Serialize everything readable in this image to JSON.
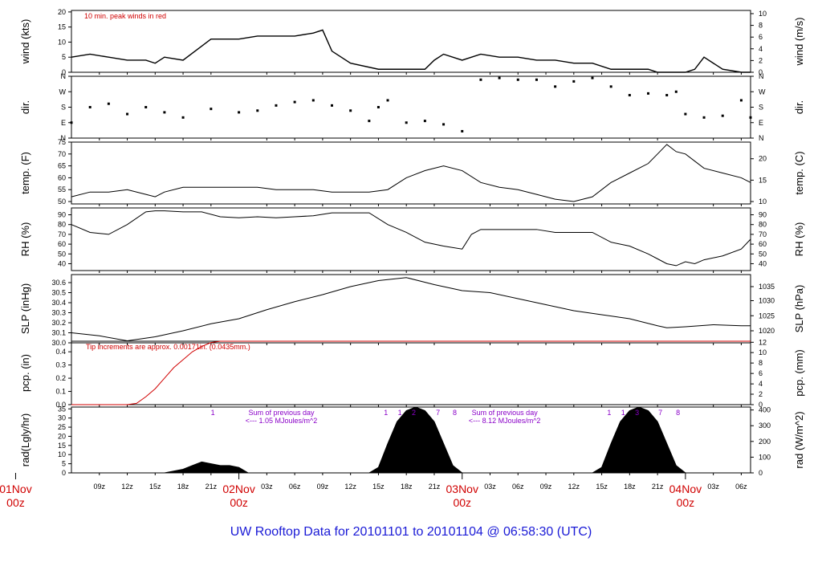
{
  "title": "UW Rooftop Data for 20101101  to  20101104 @ 06:58:30  (UTC)",
  "colors": {
    "title": "#1a1ad6",
    "note_red": "#d00000",
    "note_purple": "#8a00c8",
    "line": "#000000",
    "pcp_line": "#d00000"
  },
  "chart_data": {
    "type": "line",
    "x_unit": "hours from 2010-11-01 06:00z",
    "x_range": [
      0,
      73
    ],
    "x_major_labels": [
      {
        "hour": -6,
        "day": "01Nov",
        "hh": "00z"
      },
      {
        "hour": 18,
        "day": "02Nov",
        "hh": "00z"
      },
      {
        "hour": 42,
        "day": "03Nov",
        "hh": "00z"
      },
      {
        "hour": 66,
        "day": "04Nov",
        "hh": "00z"
      }
    ],
    "x_minor_labels": [
      "09z",
      "12z",
      "15z",
      "18z",
      "21z",
      "03z",
      "06z",
      "09z",
      "12z",
      "15z",
      "18z",
      "21z",
      "03z",
      "06z",
      "09z",
      "12z",
      "15z",
      "18z",
      "21z",
      "03z",
      "06z"
    ],
    "x_minor_hours": [
      3,
      6,
      9,
      12,
      15,
      21,
      24,
      27,
      30,
      33,
      36,
      39,
      45,
      48,
      51,
      54,
      57,
      60,
      63,
      69,
      72
    ],
    "panels": [
      {
        "id": "wind",
        "ylabel_left": "wind (kts)",
        "ylabel_right": "wind (m/s)",
        "ylim": [
          0,
          20.5
        ],
        "yticks_left": [
          "0",
          "5",
          "10",
          "15",
          "20"
        ],
        "yticks_left_vals": [
          0,
          5,
          10,
          15,
          20
        ],
        "yticks_right": [
          "0",
          "2",
          "4",
          "6",
          "8",
          "10"
        ],
        "yticks_right_vals": [
          0,
          3.89,
          7.78,
          11.66,
          15.55,
          19.44
        ],
        "annotation": "10 min. peak winds in red",
        "series_hour": [
          0,
          2,
          4,
          6,
          8,
          9,
          10,
          12,
          15,
          18,
          20,
          22,
          24,
          26,
          27,
          28,
          30,
          33,
          36,
          38,
          39,
          40,
          42,
          44,
          46,
          48,
          50,
          52,
          54,
          56,
          58,
          60,
          62,
          63,
          64,
          65,
          66,
          67,
          68,
          70,
          72,
          73
        ],
        "series_value": [
          5,
          6,
          5,
          4,
          4,
          3,
          5,
          4,
          11,
          11,
          12,
          12,
          12,
          13,
          14,
          7,
          3,
          1,
          1,
          1,
          4,
          6,
          4,
          6,
          5,
          5,
          4,
          4,
          3,
          3,
          1,
          1,
          1,
          0,
          0,
          0,
          0,
          1,
          5,
          1,
          0,
          0
        ]
      },
      {
        "id": "dir",
        "ylabel_left": "dir.",
        "ylabel_right": "dir.",
        "ylim": [
          0,
          360
        ],
        "yticks_left": [
          "N",
          "E",
          "S",
          "W",
          "N"
        ],
        "yticks_left_vals": [
          0,
          90,
          180,
          270,
          360
        ],
        "yticks_right": [
          "N",
          "E",
          "S",
          "W",
          "N"
        ],
        "yticks_right_vals": [
          0,
          90,
          180,
          270,
          360
        ],
        "series_hour": [
          0,
          2,
          4,
          6,
          8,
          10,
          12,
          15,
          18,
          20,
          22,
          24,
          26,
          28,
          30,
          32,
          33,
          34,
          36,
          38,
          40,
          42,
          44,
          46,
          48,
          50,
          52,
          54,
          56,
          58,
          60,
          62,
          64,
          65,
          66,
          68,
          70,
          72,
          73
        ],
        "series_value": [
          90,
          180,
          200,
          140,
          180,
          150,
          120,
          170,
          150,
          160,
          190,
          210,
          220,
          190,
          160,
          100,
          180,
          220,
          90,
          100,
          80,
          40,
          340,
          350,
          340,
          340,
          300,
          330,
          350,
          300,
          250,
          260,
          250,
          270,
          140,
          120,
          130,
          220,
          120
        ]
      },
      {
        "id": "temp",
        "ylabel_left": "temp. (F)",
        "ylabel_right": "temp. (C)",
        "ylim": [
          49,
          75
        ],
        "yticks_left": [
          "50",
          "55",
          "60",
          "65",
          "70",
          "75"
        ],
        "yticks_left_vals": [
          50,
          55,
          60,
          65,
          70,
          75
        ],
        "yticks_right": [
          "10",
          "15",
          "20"
        ],
        "yticks_right_vals": [
          50,
          59,
          68
        ],
        "series_hour": [
          0,
          2,
          4,
          6,
          8,
          9,
          10,
          12,
          14,
          16,
          18,
          20,
          22,
          24,
          26,
          28,
          30,
          32,
          34,
          36,
          38,
          40,
          42,
          44,
          46,
          48,
          50,
          52,
          54,
          56,
          58,
          60,
          62,
          63,
          64,
          65,
          66,
          67,
          68,
          70,
          72,
          73
        ],
        "series_value": [
          52,
          54,
          54,
          55,
          53,
          52,
          54,
          56,
          56,
          56,
          56,
          56,
          55,
          55,
          55,
          54,
          54,
          54,
          55,
          60,
          63,
          65,
          63,
          58,
          56,
          55,
          53,
          51,
          50,
          52,
          58,
          62,
          66,
          70,
          74,
          71,
          70,
          67,
          64,
          62,
          60,
          58
        ]
      },
      {
        "id": "rh",
        "ylabel_left": "RH (%)",
        "ylabel_right": "RH (%)",
        "ylim": [
          33,
          97
        ],
        "yticks_left": [
          "40",
          "50",
          "60",
          "70",
          "80",
          "90"
        ],
        "yticks_left_vals": [
          40,
          50,
          60,
          70,
          80,
          90
        ],
        "yticks_right": [
          "40",
          "50",
          "60",
          "70",
          "80",
          "90"
        ],
        "yticks_right_vals": [
          40,
          50,
          60,
          70,
          80,
          90
        ],
        "series_hour": [
          0,
          2,
          4,
          6,
          8,
          9,
          10,
          12,
          14,
          16,
          18,
          20,
          22,
          24,
          26,
          28,
          30,
          32,
          34,
          36,
          38,
          40,
          42,
          43,
          44,
          46,
          48,
          50,
          52,
          54,
          56,
          58,
          60,
          62,
          63,
          64,
          65,
          66,
          67,
          68,
          70,
          72,
          73
        ],
        "series_value": [
          80,
          72,
          70,
          80,
          93,
          94,
          94,
          93,
          93,
          88,
          87,
          88,
          87,
          88,
          89,
          92,
          92,
          92,
          80,
          72,
          62,
          58,
          55,
          70,
          75,
          75,
          75,
          75,
          72,
          72,
          72,
          62,
          58,
          50,
          45,
          40,
          38,
          42,
          40,
          44,
          48,
          55,
          65
        ]
      },
      {
        "id": "slp",
        "ylabel_left": "SLP (inHg)",
        "ylabel_right": "SLP (hPa)",
        "ylim": [
          30.0,
          30.68
        ],
        "yticks_left": [
          "30.0",
          "30.1",
          "30.2",
          "30.3",
          "30.4",
          "30.5",
          "30.6"
        ],
        "yticks_left_vals": [
          30.0,
          30.1,
          30.2,
          30.3,
          30.4,
          30.5,
          30.6
        ],
        "yticks_right": [
          "1020",
          "1025",
          "1030",
          "1035"
        ],
        "yticks_right_vals": [
          30.12,
          30.27,
          30.42,
          30.56
        ],
        "series_hour": [
          0,
          3,
          6,
          9,
          12,
          15,
          18,
          21,
          24,
          27,
          30,
          33,
          36,
          39,
          42,
          45,
          48,
          51,
          54,
          57,
          60,
          63,
          64,
          66,
          69,
          72,
          73
        ],
        "series_value": [
          30.1,
          30.07,
          30.02,
          30.06,
          30.12,
          30.19,
          30.24,
          30.33,
          30.41,
          30.48,
          30.56,
          30.62,
          30.65,
          30.58,
          30.52,
          30.5,
          30.44,
          30.38,
          30.32,
          30.28,
          30.24,
          30.17,
          30.15,
          30.16,
          30.18,
          30.17,
          30.17
        ]
      },
      {
        "id": "pcp",
        "ylabel_left": "pcp. (in)",
        "ylabel_right": "pcp. (mm)",
        "ylim": [
          0,
          0.48
        ],
        "yticks_left": [
          "0.0",
          "0.1",
          "0.2",
          "0.3",
          "0.4"
        ],
        "yticks_left_vals": [
          0,
          0.1,
          0.2,
          0.3,
          0.4
        ],
        "yticks_right": [
          "0",
          "2",
          "4",
          "6",
          "8",
          "10",
          "12"
        ],
        "yticks_right_vals": [
          0,
          0.079,
          0.157,
          0.236,
          0.315,
          0.394,
          0.472
        ],
        "annotation": "Tip increments are approx. 0.00171in. (0.0435mm.)",
        "series_hour": [
          0,
          2,
          4,
          6,
          7,
          8,
          9,
          10,
          11,
          12,
          13,
          14,
          15,
          16,
          73
        ],
        "series_value": [
          0,
          0,
          0,
          0,
          0.01,
          0.06,
          0.12,
          0.2,
          0.28,
          0.34,
          0.4,
          0.44,
          0.47,
          0.48,
          0.48
        ]
      },
      {
        "id": "rad",
        "ylabel_left": "rad(Lgly/hr)",
        "ylabel_right": "rad (W/m^2)",
        "ylim": [
          0,
          36
        ],
        "yticks_left": [
          "0",
          "5",
          "10",
          "15",
          "20",
          "25",
          "30",
          "35"
        ],
        "yticks_left_vals": [
          0,
          5,
          10,
          15,
          20,
          25,
          30,
          35
        ],
        "yticks_right": [
          "0",
          "100",
          "200",
          "300",
          "400"
        ],
        "yticks_right_vals": [
          0,
          8.6,
          17.2,
          25.8,
          34.4
        ],
        "annotations": [
          {
            "text": "Sum of previous day",
            "hour": 23
          },
          {
            "text": "<--- 1.05 MJoules/m^2",
            "hour": 23
          },
          {
            "text": "Sum of previous day",
            "hour": 47
          },
          {
            "text": "<--- 8.12 MJoules/m^2",
            "hour": 47
          }
        ],
        "marker_numbers": [
          {
            "text": "1",
            "hour": 15.2
          },
          {
            "text": "1",
            "hour": 33.8
          },
          {
            "text": "1",
            "hour": 35.3
          },
          {
            "text": "2",
            "hour": 36.8
          },
          {
            "text": "7",
            "hour": 39.4
          },
          {
            "text": "8",
            "hour": 41.2
          },
          {
            "text": "1",
            "hour": 57.8
          },
          {
            "text": "1",
            "hour": 59.3
          },
          {
            "text": "3",
            "hour": 60.8
          },
          {
            "text": "7",
            "hour": 63.3
          },
          {
            "text": "8",
            "hour": 65.2
          }
        ],
        "series_hour": [
          0,
          8,
          9,
          10,
          11,
          12,
          13,
          14,
          15,
          16,
          17,
          18,
          19,
          20,
          21,
          22,
          23,
          24,
          32,
          33,
          34,
          35,
          36,
          37,
          38,
          39,
          40,
          41,
          42,
          43,
          56,
          57,
          58,
          59,
          60,
          61,
          62,
          63,
          64,
          65,
          66,
          67,
          73
        ],
        "series_value": [
          0,
          0,
          0,
          0,
          1,
          2,
          4,
          6,
          5,
          4,
          4,
          3,
          0,
          0,
          0,
          0,
          0,
          0,
          0,
          3,
          16,
          28,
          34,
          36,
          34,
          28,
          16,
          4,
          0,
          0,
          0,
          3,
          16,
          28,
          34,
          36,
          34,
          28,
          16,
          4,
          0,
          0,
          0
        ]
      }
    ]
  }
}
